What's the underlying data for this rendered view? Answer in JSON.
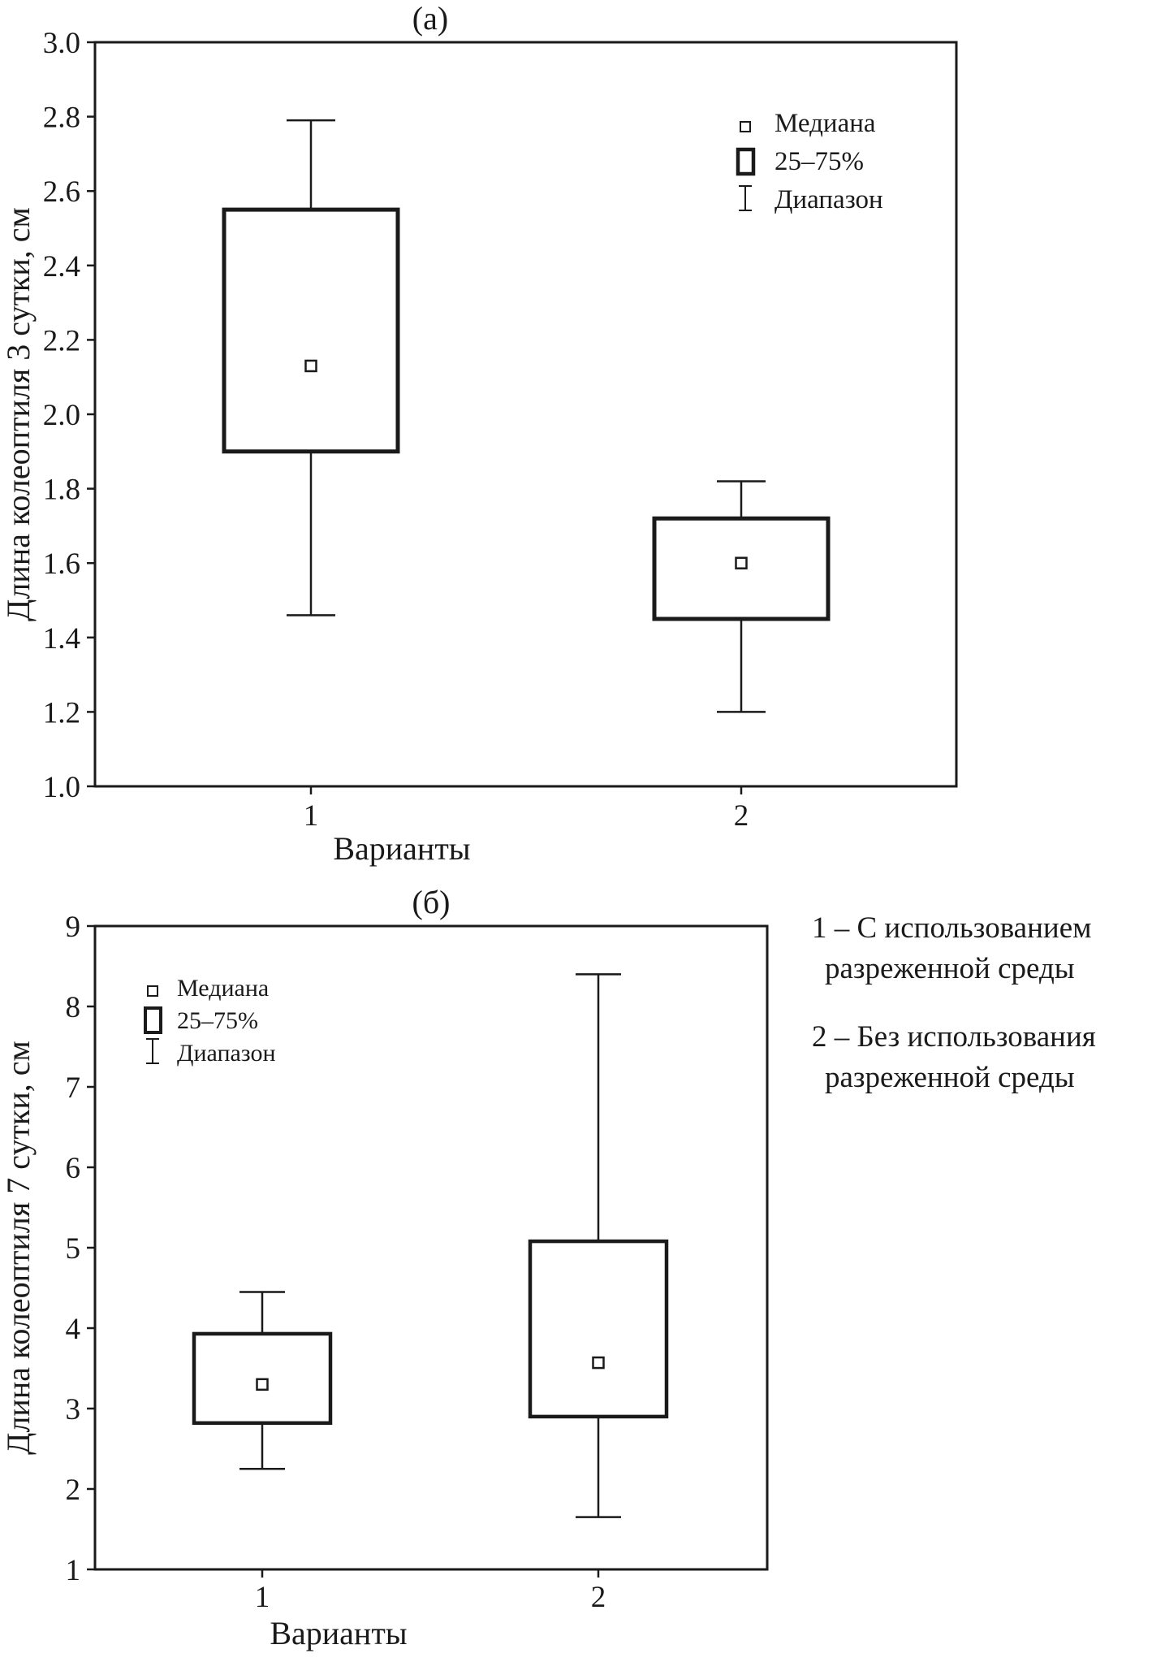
{
  "colors": {
    "ink": "#1a1a1a",
    "background": "#ffffff"
  },
  "chart_data": [
    {
      "type": "boxplot",
      "title": "(а)",
      "xlabel": "Варианты",
      "ylabel": "Длина колеоптиля 3 сутки, см",
      "categories": [
        "1",
        "2"
      ],
      "ylim": [
        1.0,
        3.0
      ],
      "ytick_step": 0.2,
      "ytick_decimals": 1,
      "grid": false,
      "legend": [
        "Медиана",
        "25–75%",
        "Диапазон"
      ],
      "legend_position": "top-right",
      "boxes": [
        {
          "category": "1",
          "median": 2.13,
          "q1": 1.9,
          "q3": 2.55,
          "whisker_low": 1.46,
          "whisker_high": 2.79
        },
        {
          "category": "2",
          "median": 1.6,
          "q1": 1.45,
          "q3": 1.72,
          "whisker_low": 1.2,
          "whisker_high": 1.82
        }
      ]
    },
    {
      "type": "boxplot",
      "title": "(б)",
      "xlabel": "Варианты",
      "ylabel": "Длина колеоптиля 7 сутки, см",
      "categories": [
        "1",
        "2"
      ],
      "ylim": [
        1,
        9
      ],
      "ytick_step": 1,
      "ytick_decimals": 0,
      "grid": false,
      "legend": [
        "Медиана",
        "25–75%",
        "Диапазон"
      ],
      "legend_position": "top-left",
      "boxes": [
        {
          "category": "1",
          "median": 3.3,
          "q1": 2.82,
          "q3": 3.93,
          "whisker_low": 2.25,
          "whisker_high": 4.45
        },
        {
          "category": "2",
          "median": 3.57,
          "q1": 2.9,
          "q3": 5.08,
          "whisker_low": 1.65,
          "whisker_high": 8.4
        }
      ]
    }
  ],
  "side_note": {
    "item1_line1": "1 – С использованием",
    "item1_line2": "разреженной среды",
    "item2_line1": "2 – Без использования",
    "item2_line2": "разреженной среды"
  }
}
